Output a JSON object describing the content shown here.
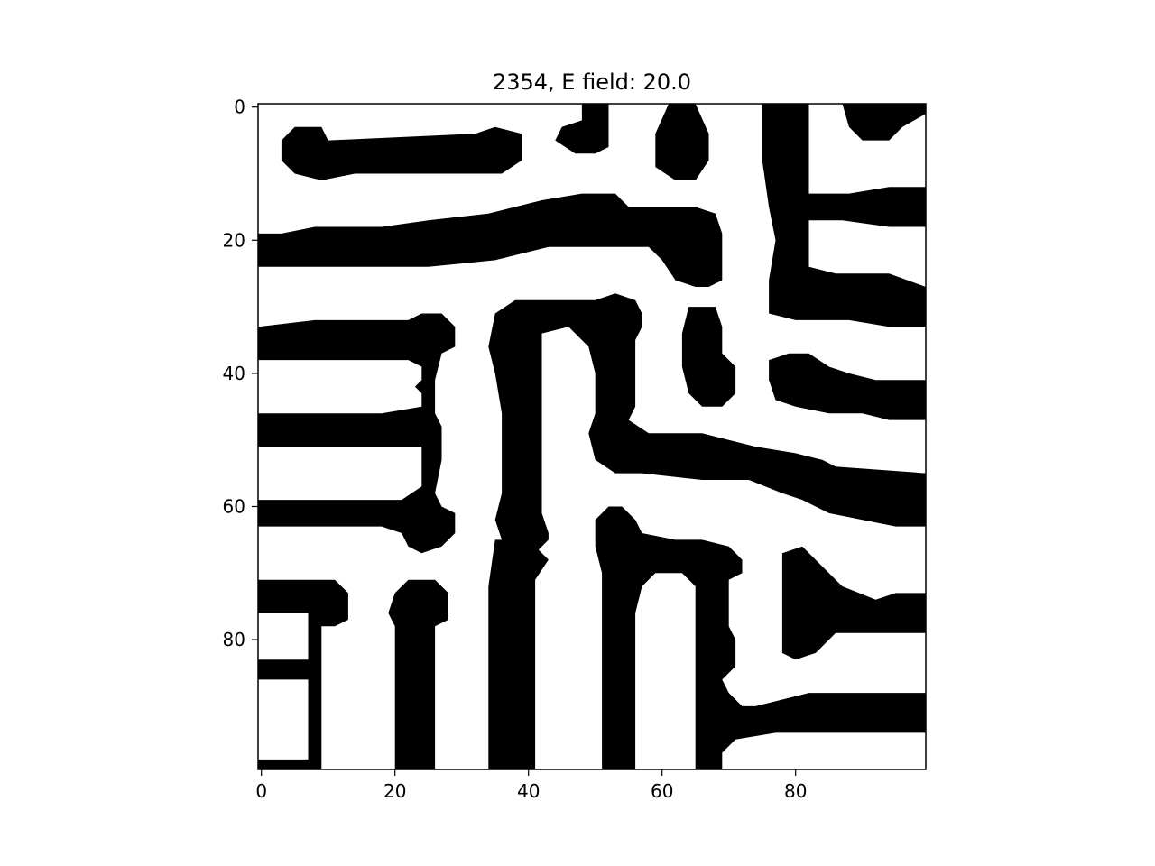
{
  "chart_data": {
    "type": "heatmap",
    "title": "2354, E field: 20.0",
    "xlabel": "",
    "ylabel": "",
    "xlim": [
      -0.5,
      99.5
    ],
    "ylim": [
      99.5,
      -0.5
    ],
    "x_ticks": [
      0,
      20,
      40,
      60,
      80
    ],
    "y_ticks": [
      0,
      20,
      40,
      60,
      80
    ],
    "x_tick_labels": [
      "0",
      "20",
      "40",
      "60",
      "80"
    ],
    "y_tick_labels": [
      "0",
      "20",
      "40",
      "60",
      "80"
    ],
    "colormap": {
      "fill": "#000000",
      "background": "#ffffff"
    },
    "grid": false,
    "legend": "none",
    "regions": [
      {
        "name": "domain-top-1",
        "points": [
          [
            3,
            5
          ],
          [
            5,
            3
          ],
          [
            9,
            3
          ],
          [
            10,
            5
          ],
          [
            32,
            4
          ],
          [
            35,
            3
          ],
          [
            39,
            4
          ],
          [
            39,
            8
          ],
          [
            36,
            10
          ],
          [
            29,
            10
          ],
          [
            14,
            10
          ],
          [
            9,
            11
          ],
          [
            5,
            10
          ],
          [
            3,
            8
          ]
        ]
      },
      {
        "name": "domain-top-2",
        "points": [
          [
            48,
            -0.5
          ],
          [
            52,
            -0.5
          ],
          [
            52,
            6
          ],
          [
            50,
            7
          ],
          [
            47,
            7
          ],
          [
            44,
            5
          ],
          [
            45,
            3
          ],
          [
            48,
            2
          ]
        ]
      },
      {
        "name": "domain-top-3",
        "points": [
          [
            61,
            -0.5
          ],
          [
            65,
            -0.5
          ],
          [
            67,
            4
          ],
          [
            67,
            8
          ],
          [
            65,
            11
          ],
          [
            62,
            11
          ],
          [
            59,
            9
          ],
          [
            59,
            4
          ]
        ]
      },
      {
        "name": "domain-top-4",
        "points": [
          [
            75,
            -0.5
          ],
          [
            82,
            -0.5
          ],
          [
            82,
            13
          ],
          [
            88,
            13
          ],
          [
            94,
            12
          ],
          [
            99.5,
            12
          ],
          [
            99.5,
            18
          ],
          [
            94,
            18
          ],
          [
            87,
            17
          ],
          [
            82,
            17
          ],
          [
            82,
            24
          ],
          [
            86,
            25
          ],
          [
            94,
            25
          ],
          [
            99.5,
            27
          ],
          [
            99.5,
            33
          ],
          [
            94,
            33
          ],
          [
            88,
            32
          ],
          [
            80,
            32
          ],
          [
            76,
            31
          ],
          [
            76,
            26
          ],
          [
            77,
            20
          ],
          [
            76,
            15
          ],
          [
            75,
            8
          ]
        ]
      },
      {
        "name": "domain-top-5",
        "points": [
          [
            87,
            -0.5
          ],
          [
            99.5,
            -0.5
          ],
          [
            99.5,
            1
          ],
          [
            96,
            3
          ],
          [
            94,
            5
          ],
          [
            90,
            5
          ],
          [
            88,
            3
          ]
        ]
      },
      {
        "name": "domain-left-1",
        "points": [
          [
            -0.5,
            19
          ],
          [
            3,
            19
          ],
          [
            8,
            18
          ],
          [
            18,
            18
          ],
          [
            25,
            17
          ],
          [
            34,
            16
          ],
          [
            42,
            14
          ],
          [
            48,
            13
          ],
          [
            53,
            13
          ],
          [
            55,
            15
          ],
          [
            60,
            15
          ],
          [
            65,
            15
          ],
          [
            68,
            16
          ],
          [
            69,
            19
          ],
          [
            69,
            26
          ],
          [
            67,
            27
          ],
          [
            65,
            27
          ],
          [
            62,
            26
          ],
          [
            60,
            23
          ],
          [
            58,
            21
          ],
          [
            55,
            21
          ],
          [
            43,
            21
          ],
          [
            35,
            23
          ],
          [
            25,
            24
          ],
          [
            20,
            24
          ],
          [
            12,
            24
          ],
          [
            -0.5,
            24
          ]
        ]
      },
      {
        "name": "domain-left-2",
        "points": [
          [
            -0.5,
            33
          ],
          [
            8,
            32
          ],
          [
            15,
            32
          ],
          [
            22,
            32
          ],
          [
            24,
            31
          ],
          [
            27,
            31
          ],
          [
            29,
            33
          ],
          [
            29,
            36
          ],
          [
            27,
            37
          ],
          [
            26,
            41
          ],
          [
            26,
            46
          ],
          [
            27,
            48
          ],
          [
            27,
            53
          ],
          [
            26,
            58
          ],
          [
            27,
            60
          ],
          [
            29,
            61
          ],
          [
            29,
            64
          ],
          [
            27,
            66
          ],
          [
            24,
            67
          ],
          [
            22,
            66
          ],
          [
            21,
            64
          ],
          [
            18,
            63
          ],
          [
            9,
            63
          ],
          [
            -0.5,
            63
          ],
          [
            -0.5,
            59
          ],
          [
            9,
            59
          ],
          [
            15,
            59
          ],
          [
            21,
            59
          ],
          [
            24,
            57
          ],
          [
            24,
            51
          ],
          [
            18,
            51
          ],
          [
            9,
            51
          ],
          [
            -0.5,
            51
          ],
          [
            -0.5,
            46
          ],
          [
            9,
            46
          ],
          [
            18,
            46
          ],
          [
            24,
            45
          ],
          [
            24,
            43
          ],
          [
            23,
            42
          ],
          [
            24,
            41
          ],
          [
            24,
            39
          ],
          [
            22,
            38
          ],
          [
            18,
            38
          ],
          [
            12,
            38
          ],
          [
            8,
            38
          ],
          [
            -0.5,
            38
          ]
        ]
      },
      {
        "name": "domain-mid-1",
        "points": [
          [
            35,
            31
          ],
          [
            38,
            29
          ],
          [
            42,
            29
          ],
          [
            50,
            29
          ],
          [
            53,
            28
          ],
          [
            56,
            29
          ],
          [
            57,
            31
          ],
          [
            57,
            33
          ],
          [
            56,
            35
          ],
          [
            56,
            42
          ],
          [
            56,
            45
          ],
          [
            55,
            47
          ],
          [
            58,
            49
          ],
          [
            62,
            49
          ],
          [
            66,
            49
          ],
          [
            70,
            50
          ],
          [
            74,
            51
          ],
          [
            80,
            52
          ],
          [
            84,
            53
          ],
          [
            86,
            54
          ],
          [
            99.5,
            55
          ],
          [
            99.5,
            63
          ],
          [
            95,
            63
          ],
          [
            90,
            62
          ],
          [
            85,
            61
          ],
          [
            81,
            59
          ],
          [
            78,
            58
          ],
          [
            73,
            56
          ],
          [
            66,
            56
          ],
          [
            57,
            55
          ],
          [
            53,
            55
          ],
          [
            50,
            53
          ],
          [
            49,
            49
          ],
          [
            50,
            46
          ],
          [
            50,
            40
          ],
          [
            49,
            36
          ],
          [
            46,
            33
          ],
          [
            42,
            34
          ],
          [
            42,
            47
          ],
          [
            42,
            55
          ],
          [
            42,
            61
          ],
          [
            43,
            64
          ],
          [
            43,
            65
          ],
          [
            41,
            67
          ],
          [
            38,
            67
          ],
          [
            36,
            65
          ],
          [
            35,
            62
          ],
          [
            36,
            58
          ],
          [
            36,
            46
          ],
          [
            35,
            40
          ],
          [
            34,
            36
          ]
        ]
      },
      {
        "name": "domain-mid-2",
        "points": [
          [
            64,
            30
          ],
          [
            68,
            30
          ],
          [
            69,
            33
          ],
          [
            69,
            37
          ],
          [
            71,
            39
          ],
          [
            71,
            43
          ],
          [
            69,
            45
          ],
          [
            66,
            45
          ],
          [
            64,
            43
          ],
          [
            63,
            39
          ],
          [
            63,
            34
          ]
        ]
      },
      {
        "name": "domain-mid-3",
        "points": [
          [
            76,
            38
          ],
          [
            79,
            37
          ],
          [
            82,
            37
          ],
          [
            85,
            39
          ],
          [
            88,
            40
          ],
          [
            92,
            41
          ],
          [
            99.5,
            41
          ],
          [
            99.5,
            47
          ],
          [
            94,
            47
          ],
          [
            90,
            46
          ],
          [
            85,
            46
          ],
          [
            80,
            45
          ],
          [
            77,
            44
          ],
          [
            76,
            41
          ]
        ]
      },
      {
        "name": "domain-bottom-1",
        "points": [
          [
            50,
            62
          ],
          [
            52,
            60
          ],
          [
            54,
            60
          ],
          [
            56,
            62
          ],
          [
            57,
            64
          ],
          [
            62,
            65
          ],
          [
            66,
            65
          ],
          [
            70,
            66
          ],
          [
            72,
            68
          ],
          [
            72,
            70
          ],
          [
            70,
            71
          ],
          [
            70,
            78
          ],
          [
            71,
            80
          ],
          [
            71,
            84
          ],
          [
            69,
            86
          ],
          [
            70,
            88
          ],
          [
            72,
            90
          ],
          [
            74,
            90
          ],
          [
            78,
            89
          ],
          [
            82,
            88
          ],
          [
            92,
            88
          ],
          [
            99.5,
            88
          ],
          [
            99.5,
            94
          ],
          [
            88,
            94
          ],
          [
            77,
            94
          ],
          [
            71,
            95
          ],
          [
            69,
            97
          ],
          [
            69,
            99.5
          ],
          [
            65,
            99.5
          ],
          [
            65,
            83
          ],
          [
            65,
            78
          ],
          [
            65,
            72
          ],
          [
            63,
            70
          ],
          [
            59,
            70
          ],
          [
            57,
            72
          ],
          [
            56,
            76
          ],
          [
            56,
            99.5
          ],
          [
            51,
            99.5
          ],
          [
            51,
            84
          ],
          [
            51,
            77
          ],
          [
            51,
            70
          ],
          [
            50,
            66
          ]
        ]
      },
      {
        "name": "domain-bottom-2",
        "points": [
          [
            78,
            67
          ],
          [
            81,
            66
          ],
          [
            84,
            69
          ],
          [
            87,
            72
          ],
          [
            92,
            74
          ],
          [
            95,
            73
          ],
          [
            99.5,
            73
          ],
          [
            99.5,
            79
          ],
          [
            94,
            79
          ],
          [
            86,
            79
          ],
          [
            83,
            82
          ],
          [
            80,
            83
          ],
          [
            78,
            82
          ],
          [
            78,
            75
          ]
        ]
      },
      {
        "name": "domain-bottom-3",
        "points": [
          [
            -0.5,
            71
          ],
          [
            5,
            71
          ],
          [
            11,
            71
          ],
          [
            13,
            73
          ],
          [
            13,
            77
          ],
          [
            11,
            78
          ],
          [
            9,
            78
          ],
          [
            9,
            84
          ],
          [
            9,
            99.5
          ],
          [
            7,
            99.5
          ],
          [
            -0.5,
            99.5
          ],
          [
            -0.5,
            98
          ],
          [
            7,
            98
          ],
          [
            7,
            89
          ],
          [
            7,
            86
          ],
          [
            -0.5,
            86
          ],
          [
            -0.5,
            83
          ],
          [
            7,
            83
          ],
          [
            7,
            76
          ],
          [
            -0.5,
            76
          ]
        ]
      },
      {
        "name": "domain-bottom-4",
        "points": [
          [
            20,
            73
          ],
          [
            22,
            71
          ],
          [
            26,
            71
          ],
          [
            28,
            73
          ],
          [
            28,
            77
          ],
          [
            26,
            78
          ],
          [
            26,
            99.5
          ],
          [
            20,
            99.5
          ],
          [
            20,
            85
          ],
          [
            20,
            78
          ],
          [
            19,
            76
          ]
        ]
      },
      {
        "name": "domain-bottom-5",
        "points": [
          [
            35,
            65
          ],
          [
            38,
            65
          ],
          [
            41,
            66
          ],
          [
            43,
            68
          ],
          [
            41,
            71
          ],
          [
            41,
            99.5
          ],
          [
            34,
            99.5
          ],
          [
            34,
            80
          ],
          [
            34,
            72
          ]
        ]
      }
    ]
  }
}
